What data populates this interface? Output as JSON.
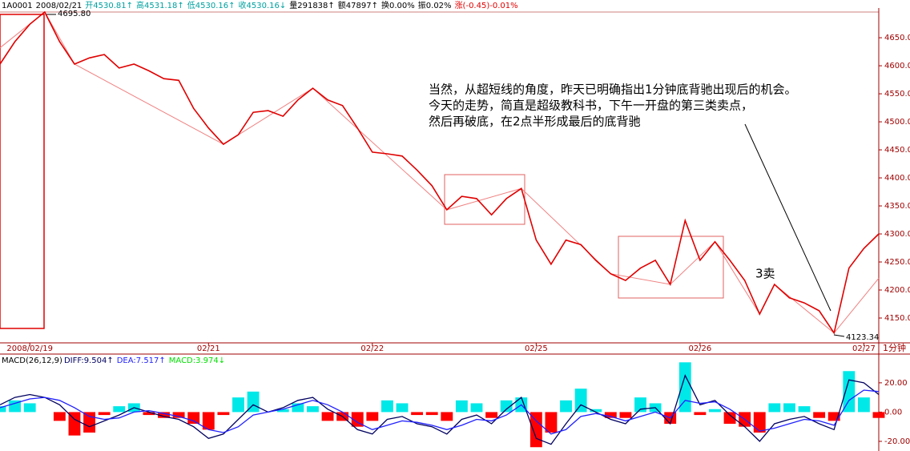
{
  "header": [
    "1A0001",
    "2008/02/21",
    "开4530.81↑",
    "高4531.18↑",
    "低4530.16↑",
    "收4530.16↓",
    "量291838↑",
    "额47897↑",
    "换0.00%",
    "振0.02%",
    "涨(-0.45)-0.01%"
  ],
  "annotations": [
    "当然，从超短线的角度，昨天已明确指出1分钟底背驰出现后的机会。",
    "今天的走势，简直是超级教科书，下午一开盘的第三类卖点，",
    "然后再破底，在2点半形成最后的底背驰",
    "3卖",
    "4695.80",
    "4123.34"
  ],
  "chart_data": [
    {
      "type": "line",
      "period": "1分钟",
      "categories": [
        null,
        null,
        "2008/02/19",
        null,
        null,
        null,
        null,
        null,
        null,
        null,
        null,
        null,
        null,
        null,
        "02/21",
        null,
        null,
        null,
        null,
        null,
        null,
        null,
        null,
        null,
        null,
        "02/22",
        null,
        null,
        null,
        null,
        null,
        null,
        null,
        null,
        null,
        null,
        "02/25",
        null,
        null,
        null,
        null,
        null,
        null,
        null,
        null,
        null,
        null,
        "02/26",
        null,
        null,
        null,
        null,
        null,
        null,
        null,
        null,
        null,
        null,
        "02/27",
        null
      ],
      "series": [
        {
          "name": "price",
          "color": "#e00000",
          "values": [
            4603,
            4643,
            4674,
            4695.8,
            4643,
            4603,
            4614,
            4620,
            4596,
            4603,
            4591,
            4577,
            4574,
            4524,
            4489,
            4460,
            4477,
            4517,
            4520,
            4510,
            4539,
            4560,
            4539,
            4529,
            4489,
            4446,
            4443,
            4439,
            4414,
            4386,
            4343,
            4367,
            4363,
            4334,
            4363,
            4381,
            4289,
            4246,
            4289,
            4281,
            4253,
            4229,
            4217,
            4239,
            4253,
            4210,
            4324,
            4253,
            4286,
            4253,
            4217,
            4157,
            4210,
            4186,
            4177,
            4163,
            4123.34,
            4239,
            4274,
            4300
          ]
        },
        {
          "name": "trend",
          "color": "#f08080",
          "x": [
            0,
            3,
            5,
            15,
            21,
            30,
            35,
            41,
            45,
            48,
            51,
            52,
            56,
            59
          ],
          "values": [
            4632,
            4695.8,
            4603,
            4460,
            4560,
            4343,
            4381,
            4229,
            4210,
            4286,
            4157,
            4210,
            4123.34,
            4221
          ]
        }
      ],
      "ylim": [
        4110,
        4703
      ],
      "yticks": [
        {
          "value": 4150,
          "label": "4150.00"
        },
        {
          "value": 4200,
          "label": "4200.00"
        },
        {
          "value": 4250,
          "label": "4250.00"
        },
        {
          "value": 4300,
          "label": "4300.00"
        },
        {
          "value": 4350,
          "label": "4350.00"
        },
        {
          "value": 4400,
          "label": "4400.00"
        },
        {
          "value": 4450,
          "label": "4450.00"
        },
        {
          "value": 4500,
          "label": "4500.00"
        },
        {
          "value": 4550,
          "label": "4550.00"
        },
        {
          "value": 4600,
          "label": "4600.00"
        },
        {
          "value": 4650,
          "label": "4650.00"
        }
      ]
    },
    {
      "type": "macd",
      "title": "MACD(26,12,9)",
      "series": [
        {
          "name": "MACD:3.974↓",
          "color": "#00e000",
          "up_color": "#00e8e8",
          "down_color": "#ff0000",
          "values": [
            4,
            8,
            6,
            0,
            -6,
            -16,
            -14,
            -2,
            4,
            6,
            -2,
            -4,
            -4,
            -8,
            -12,
            -2,
            10,
            14,
            0,
            2,
            6,
            4,
            -6,
            -6,
            -10,
            -6,
            8,
            6,
            -2,
            -2,
            -6,
            8,
            6,
            -4,
            8,
            10,
            -24,
            -14,
            8,
            16,
            2,
            -4,
            -4,
            10,
            6,
            -8,
            34,
            -2,
            2,
            -8,
            -10,
            -14,
            6,
            6,
            4,
            -4,
            -6,
            28,
            10,
            -4
          ]
        },
        {
          "name": "DIFF:9.504↑",
          "color": "#000060",
          "values": [
            5,
            10,
            12,
            10,
            5,
            -5,
            -10,
            -6,
            -2,
            3,
            0,
            -3,
            -5,
            -10,
            -18,
            -15,
            -5,
            5,
            0,
            3,
            8,
            10,
            2,
            -3,
            -12,
            -15,
            -5,
            -3,
            -8,
            -10,
            -15,
            -5,
            -2,
            -8,
            2,
            10,
            -18,
            -22,
            -8,
            5,
            0,
            -5,
            -8,
            2,
            3,
            -8,
            25,
            5,
            8,
            -2,
            -10,
            -20,
            -8,
            -5,
            -3,
            -8,
            -12,
            22,
            20,
            12
          ]
        },
        {
          "name": "DEA:7.517↑",
          "color": "#2020ff",
          "values": [
            3,
            6,
            9,
            10,
            8,
            3,
            -3,
            -5,
            -4,
            0,
            1,
            -1,
            -3,
            -6,
            -12,
            -14,
            -10,
            -2,
            0,
            2,
            5,
            8,
            5,
            0,
            -7,
            -12,
            -9,
            -6,
            -7,
            -9,
            -12,
            -9,
            -5,
            -6,
            -2,
            5,
            -6,
            -15,
            -12,
            -3,
            -1,
            -3,
            -6,
            -3,
            0,
            -4,
            8,
            6,
            7,
            2,
            -5,
            -13,
            -11,
            -8,
            -5,
            -6,
            -9,
            8,
            15,
            14
          ]
        }
      ],
      "ylim": [
        -26.6,
        38
      ],
      "yticks": [
        {
          "value": -20,
          "label": "-20.00"
        },
        {
          "value": 0,
          "label": "0.00"
        },
        {
          "value": 20,
          "label": "20.00"
        }
      ]
    }
  ]
}
